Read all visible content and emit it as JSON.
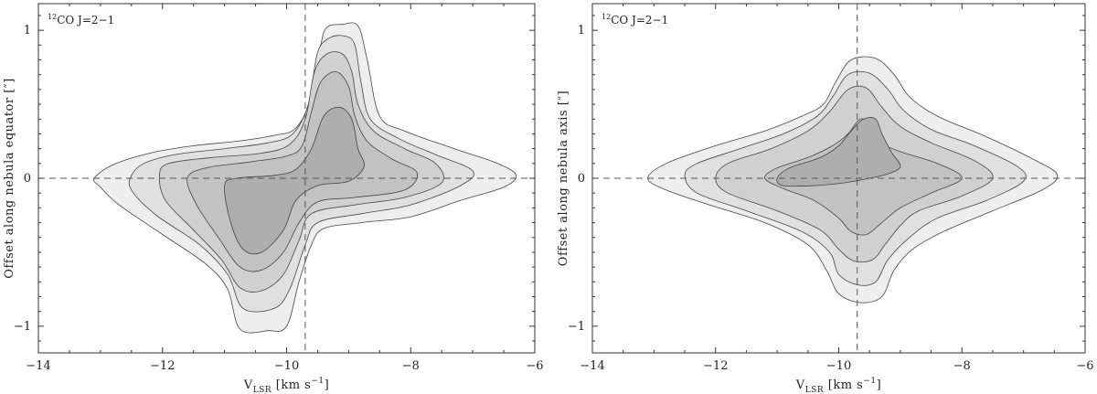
{
  "chart_data": [
    {
      "type": "contour",
      "panel_label": {
        "sup": "12",
        "text": "CO J=2−1"
      },
      "xlabel": {
        "main": "V",
        "sub": "LSR",
        "units": "[km s",
        "units_sup": "−1",
        "units_end": "]"
      },
      "ylabel": "Offset along nebula equator [″]",
      "xlim": [
        -14,
        -6
      ],
      "ylim": [
        -1.18,
        1.18
      ],
      "xticks": [
        -14,
        -12,
        -10,
        -8,
        -6
      ],
      "xtick_labels": [
        "−14",
        "−12",
        "−10",
        "−8",
        "−6"
      ],
      "yticks": [
        -1,
        0,
        1
      ],
      "ytick_labels": [
        "−1",
        "0",
        "1"
      ],
      "reference_lines": {
        "v_sys": -9.7,
        "offset": 0
      },
      "fill_colors": [
        "#eeeeee",
        "#e0e0e0",
        "#d0d0d0",
        "#c2c2c2",
        "#aeaeae"
      ],
      "contours": [
        [
          [
            -13.1,
            0
          ],
          [
            -12.8,
            0.09
          ],
          [
            -12.2,
            0.17
          ],
          [
            -11.5,
            0.22
          ],
          [
            -10.8,
            0.25
          ],
          [
            -10.2,
            0.29
          ],
          [
            -9.85,
            0.34
          ],
          [
            -9.6,
            0.55
          ],
          [
            -9.45,
            0.9
          ],
          [
            -9.35,
            1.02
          ],
          [
            -9.1,
            1.04
          ],
          [
            -8.85,
            1.03
          ],
          [
            -8.7,
            0.8
          ],
          [
            -8.5,
            0.42
          ],
          [
            -8.1,
            0.32
          ],
          [
            -7.3,
            0.2
          ],
          [
            -6.6,
            0.1
          ],
          [
            -6.3,
            0.02
          ],
          [
            -6.5,
            -0.06
          ],
          [
            -7.2,
            -0.15
          ],
          [
            -8.0,
            -0.26
          ],
          [
            -8.8,
            -0.3
          ],
          [
            -9.4,
            -0.34
          ],
          [
            -9.6,
            -0.45
          ],
          [
            -9.8,
            -0.7
          ],
          [
            -10.0,
            -1.0
          ],
          [
            -10.3,
            -1.03
          ],
          [
            -10.75,
            -1.02
          ],
          [
            -10.95,
            -0.75
          ],
          [
            -11.3,
            -0.58
          ],
          [
            -12.0,
            -0.38
          ],
          [
            -12.7,
            -0.18
          ],
          [
            -13.0,
            -0.06
          ]
        ],
        [
          [
            -12.5,
            0.02
          ],
          [
            -12.3,
            0.1
          ],
          [
            -11.8,
            0.16
          ],
          [
            -11.0,
            0.2
          ],
          [
            -10.3,
            0.24
          ],
          [
            -9.9,
            0.3
          ],
          [
            -9.65,
            0.5
          ],
          [
            -9.5,
            0.85
          ],
          [
            -9.3,
            0.95
          ],
          [
            -9.05,
            0.96
          ],
          [
            -8.9,
            0.9
          ],
          [
            -8.8,
            0.65
          ],
          [
            -8.65,
            0.4
          ],
          [
            -8.2,
            0.27
          ],
          [
            -7.6,
            0.16
          ],
          [
            -7.0,
            0.05
          ],
          [
            -7.2,
            -0.05
          ],
          [
            -8.0,
            -0.18
          ],
          [
            -8.8,
            -0.24
          ],
          [
            -9.5,
            -0.3
          ],
          [
            -9.7,
            -0.45
          ],
          [
            -9.95,
            -0.75
          ],
          [
            -10.2,
            -0.88
          ],
          [
            -10.7,
            -0.88
          ],
          [
            -10.95,
            -0.65
          ],
          [
            -11.4,
            -0.45
          ],
          [
            -12.1,
            -0.25
          ],
          [
            -12.5,
            -0.08
          ]
        ],
        [
          [
            -12.05,
            0.02
          ],
          [
            -11.9,
            0.1
          ],
          [
            -11.2,
            0.14
          ],
          [
            -10.4,
            0.17
          ],
          [
            -9.95,
            0.23
          ],
          [
            -9.7,
            0.4
          ],
          [
            -9.55,
            0.72
          ],
          [
            -9.35,
            0.84
          ],
          [
            -9.1,
            0.84
          ],
          [
            -8.95,
            0.72
          ],
          [
            -8.85,
            0.5
          ],
          [
            -8.6,
            0.32
          ],
          [
            -8.1,
            0.2
          ],
          [
            -7.6,
            0.1
          ],
          [
            -7.5,
            -0.03
          ],
          [
            -8.1,
            -0.13
          ],
          [
            -8.9,
            -0.18
          ],
          [
            -9.6,
            -0.24
          ],
          [
            -9.8,
            -0.42
          ],
          [
            -10.05,
            -0.65
          ],
          [
            -10.4,
            -0.76
          ],
          [
            -10.75,
            -0.74
          ],
          [
            -11.05,
            -0.55
          ],
          [
            -11.5,
            -0.35
          ],
          [
            -11.95,
            -0.15
          ]
        ],
        [
          [
            -11.6,
            0.0
          ],
          [
            -11.3,
            0.07
          ],
          [
            -10.6,
            0.11
          ],
          [
            -10.0,
            0.15
          ],
          [
            -9.75,
            0.22
          ],
          [
            -9.6,
            0.45
          ],
          [
            -9.45,
            0.65
          ],
          [
            -9.2,
            0.72
          ],
          [
            -9.0,
            0.62
          ],
          [
            -8.9,
            0.42
          ],
          [
            -8.7,
            0.25
          ],
          [
            -8.3,
            0.13
          ],
          [
            -7.9,
            0.04
          ],
          [
            -8.1,
            -0.08
          ],
          [
            -8.9,
            -0.13
          ],
          [
            -9.5,
            -0.16
          ],
          [
            -9.8,
            -0.3
          ],
          [
            -10.05,
            -0.5
          ],
          [
            -10.4,
            -0.62
          ],
          [
            -10.75,
            -0.6
          ],
          [
            -11.1,
            -0.4
          ],
          [
            -11.45,
            -0.18
          ]
        ],
        [
          [
            -11.0,
            -0.05
          ],
          [
            -10.8,
            0.0
          ],
          [
            -10.2,
            0.02
          ],
          [
            -9.85,
            0.06
          ],
          [
            -9.6,
            0.2
          ],
          [
            -9.4,
            0.42
          ],
          [
            -9.15,
            0.48
          ],
          [
            -8.95,
            0.4
          ],
          [
            -8.85,
            0.2
          ],
          [
            -8.75,
            0.08
          ],
          [
            -9.0,
            -0.02
          ],
          [
            -9.5,
            -0.05
          ],
          [
            -9.85,
            -0.15
          ],
          [
            -10.05,
            -0.35
          ],
          [
            -10.4,
            -0.5
          ],
          [
            -10.7,
            -0.48
          ],
          [
            -10.9,
            -0.3
          ]
        ]
      ]
    },
    {
      "type": "contour",
      "panel_label": {
        "sup": "12",
        "text": "CO J=2−1"
      },
      "xlabel": {
        "main": "V",
        "sub": "LSR",
        "units": "[km s",
        "units_sup": "−1",
        "units_end": "]"
      },
      "ylabel": "Offset along nebula axis [″]",
      "xlim": [
        -14,
        -6
      ],
      "ylim": [
        -1.18,
        1.18
      ],
      "xticks": [
        -14,
        -12,
        -10,
        -8,
        -6
      ],
      "xtick_labels": [
        "−14",
        "−12",
        "−10",
        "−8",
        "−6"
      ],
      "yticks": [
        -1,
        0,
        1
      ],
      "ytick_labels": [
        "−1",
        "0",
        "1"
      ],
      "reference_lines": {
        "v_sys": -9.7,
        "offset": 0
      },
      "fill_colors": [
        "#eeeeee",
        "#e0e0e0",
        "#d0d0d0",
        "#c2c2c2",
        "#aeaeae"
      ],
      "contours": [
        [
          [
            -13.1,
            0
          ],
          [
            -12.8,
            0.1
          ],
          [
            -12.0,
            0.22
          ],
          [
            -11.2,
            0.32
          ],
          [
            -10.6,
            0.42
          ],
          [
            -10.25,
            0.5
          ],
          [
            -10.05,
            0.65
          ],
          [
            -9.8,
            0.8
          ],
          [
            -9.4,
            0.81
          ],
          [
            -9.1,
            0.7
          ],
          [
            -8.85,
            0.55
          ],
          [
            -8.4,
            0.42
          ],
          [
            -7.6,
            0.28
          ],
          [
            -6.8,
            0.12
          ],
          [
            -6.45,
            0.02
          ],
          [
            -6.7,
            -0.08
          ],
          [
            -7.5,
            -0.22
          ],
          [
            -8.3,
            -0.36
          ],
          [
            -8.8,
            -0.48
          ],
          [
            -9.1,
            -0.62
          ],
          [
            -9.3,
            -0.8
          ],
          [
            -9.65,
            -0.84
          ],
          [
            -10.0,
            -0.78
          ],
          [
            -10.2,
            -0.62
          ],
          [
            -10.5,
            -0.45
          ],
          [
            -11.2,
            -0.3
          ],
          [
            -12.1,
            -0.18
          ],
          [
            -12.8,
            -0.08
          ]
        ],
        [
          [
            -12.5,
            0.02
          ],
          [
            -12.3,
            0.1
          ],
          [
            -11.6,
            0.2
          ],
          [
            -10.9,
            0.3
          ],
          [
            -10.35,
            0.42
          ],
          [
            -10.1,
            0.55
          ],
          [
            -9.85,
            0.7
          ],
          [
            -9.5,
            0.71
          ],
          [
            -9.2,
            0.6
          ],
          [
            -8.95,
            0.46
          ],
          [
            -8.5,
            0.33
          ],
          [
            -7.8,
            0.22
          ],
          [
            -7.1,
            0.08
          ],
          [
            -7.0,
            -0.02
          ],
          [
            -7.6,
            -0.15
          ],
          [
            -8.4,
            -0.27
          ],
          [
            -8.85,
            -0.4
          ],
          [
            -9.2,
            -0.55
          ],
          [
            -9.4,
            -0.7
          ],
          [
            -9.7,
            -0.72
          ],
          [
            -10.0,
            -0.65
          ],
          [
            -10.15,
            -0.5
          ],
          [
            -10.6,
            -0.36
          ],
          [
            -11.5,
            -0.22
          ],
          [
            -12.3,
            -0.1
          ]
        ],
        [
          [
            -12.0,
            0.0
          ],
          [
            -11.8,
            0.1
          ],
          [
            -11.1,
            0.2
          ],
          [
            -10.5,
            0.32
          ],
          [
            -10.15,
            0.45
          ],
          [
            -9.85,
            0.6
          ],
          [
            -9.55,
            0.61
          ],
          [
            -9.3,
            0.48
          ],
          [
            -9.0,
            0.35
          ],
          [
            -8.5,
            0.24
          ],
          [
            -7.8,
            0.12
          ],
          [
            -7.5,
            0.0
          ],
          [
            -8.0,
            -0.12
          ],
          [
            -8.7,
            -0.22
          ],
          [
            -9.0,
            -0.32
          ],
          [
            -9.25,
            -0.45
          ],
          [
            -9.45,
            -0.55
          ],
          [
            -9.75,
            -0.56
          ],
          [
            -10.0,
            -0.48
          ],
          [
            -10.3,
            -0.35
          ],
          [
            -11.0,
            -0.22
          ],
          [
            -11.8,
            -0.1
          ]
        ],
        [
          [
            -11.2,
            0.0
          ],
          [
            -11.0,
            0.07
          ],
          [
            -10.5,
            0.14
          ],
          [
            -10.1,
            0.22
          ],
          [
            -9.85,
            0.3
          ],
          [
            -9.65,
            0.4
          ],
          [
            -9.45,
            0.36
          ],
          [
            -9.35,
            0.25
          ],
          [
            -9.0,
            0.18
          ],
          [
            -8.4,
            0.1
          ],
          [
            -8.0,
            0.0
          ],
          [
            -8.5,
            -0.1
          ],
          [
            -9.0,
            -0.2
          ],
          [
            -9.3,
            -0.3
          ],
          [
            -9.55,
            -0.38
          ],
          [
            -9.8,
            -0.36
          ],
          [
            -10.0,
            -0.27
          ],
          [
            -10.4,
            -0.15
          ],
          [
            -10.9,
            -0.07
          ]
        ],
        [
          [
            -11.0,
            0.0
          ],
          [
            -10.8,
            0.07
          ],
          [
            -10.3,
            0.14
          ],
          [
            -10.0,
            0.22
          ],
          [
            -9.8,
            0.32
          ],
          [
            -9.6,
            0.4
          ],
          [
            -9.4,
            0.4
          ],
          [
            -9.3,
            0.3
          ],
          [
            -9.15,
            0.18
          ],
          [
            -9.0,
            0.08
          ],
          [
            -9.2,
            0.03
          ],
          [
            -9.5,
            0.0
          ],
          [
            -9.9,
            -0.03
          ],
          [
            -10.4,
            -0.05
          ],
          [
            -10.9,
            -0.05
          ]
        ]
      ]
    }
  ]
}
